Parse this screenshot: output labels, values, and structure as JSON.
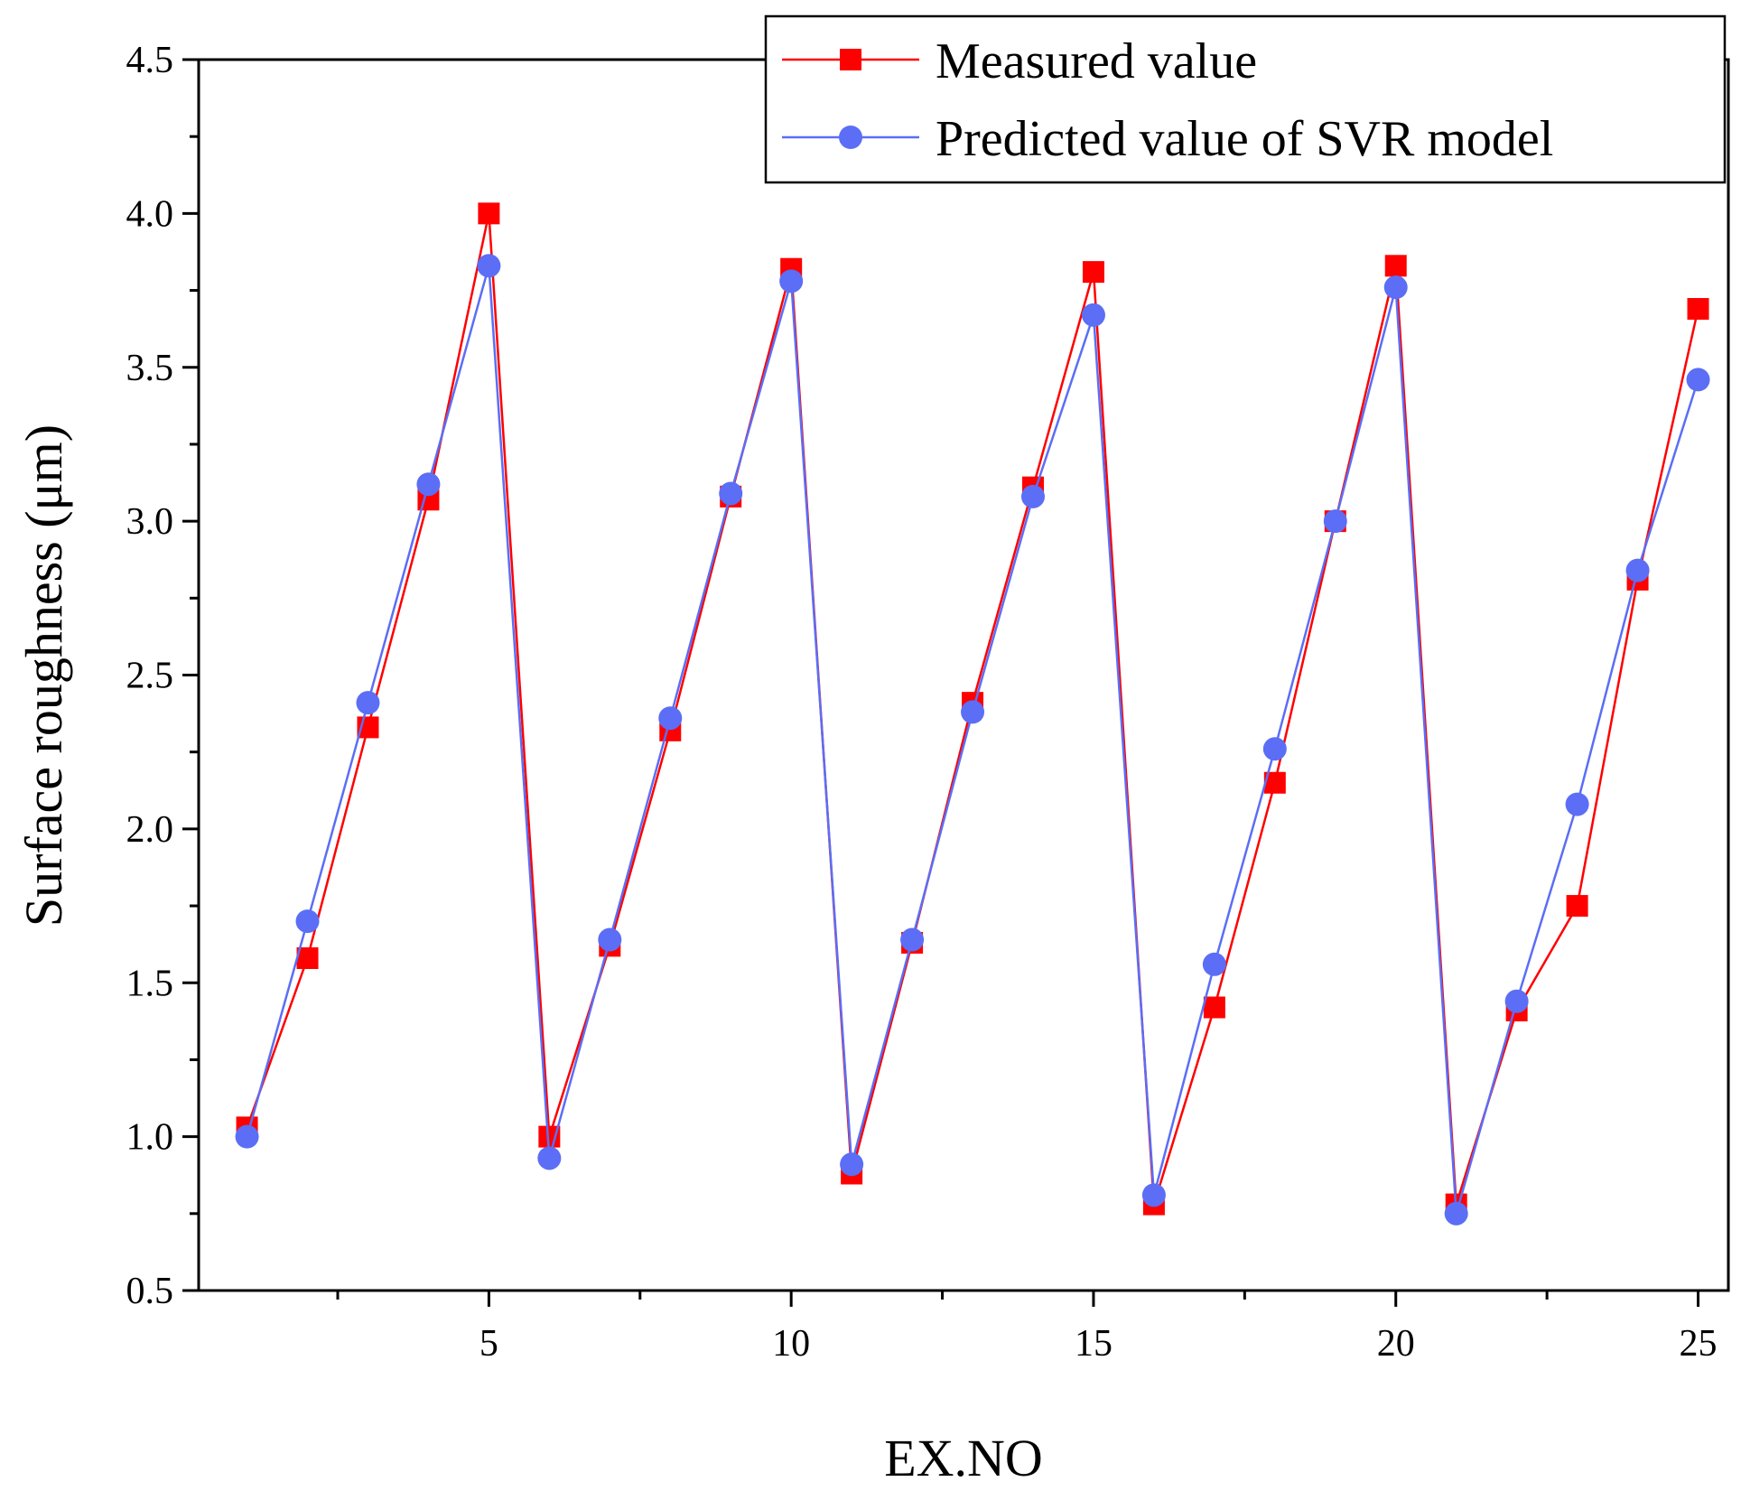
{
  "chart_data": {
    "type": "line",
    "title": "",
    "xlabel": "EX.NO",
    "ylabel": "Surface roughness (μm)",
    "xlim": [
      0.2,
      25.5
    ],
    "ylim": [
      0.5,
      4.5
    ],
    "xticks": [
      5,
      10,
      15,
      20,
      25
    ],
    "xticks_minor": [
      2.5,
      7.5,
      12.5,
      17.5,
      22.5
    ],
    "yticks": [
      0.5,
      1.0,
      1.5,
      2.0,
      2.5,
      3.0,
      3.5,
      4.0,
      4.5
    ],
    "ytick_labels": [
      "0.5",
      "1.0",
      "1.5",
      "2.0",
      "2.5",
      "3.0",
      "3.5",
      "4.0",
      "4.5"
    ],
    "legend_position": "top-right",
    "x": [
      1,
      2,
      3,
      4,
      5,
      6,
      7,
      8,
      9,
      10,
      11,
      12,
      13,
      14,
      15,
      16,
      17,
      18,
      19,
      20,
      21,
      22,
      23,
      24,
      25
    ],
    "series": [
      {
        "name": "Measured value",
        "color": "#ff0000",
        "marker": "square",
        "values": [
          1.03,
          1.58,
          2.33,
          3.07,
          4.0,
          1.0,
          1.62,
          2.32,
          3.08,
          3.82,
          0.88,
          1.63,
          2.41,
          3.11,
          3.81,
          0.78,
          1.42,
          2.15,
          3.0,
          3.83,
          0.78,
          1.41,
          1.75,
          2.81,
          3.69
        ]
      },
      {
        "name": "Predicted value of SVR model",
        "color": "#5b6ef5",
        "marker": "circle",
        "values": [
          1.0,
          1.7,
          2.41,
          3.12,
          3.83,
          0.93,
          1.64,
          2.36,
          3.09,
          3.78,
          0.91,
          1.64,
          2.38,
          3.08,
          3.67,
          0.81,
          1.56,
          2.26,
          3.0,
          3.76,
          0.75,
          1.44,
          2.08,
          2.84,
          3.46
        ]
      }
    ]
  }
}
